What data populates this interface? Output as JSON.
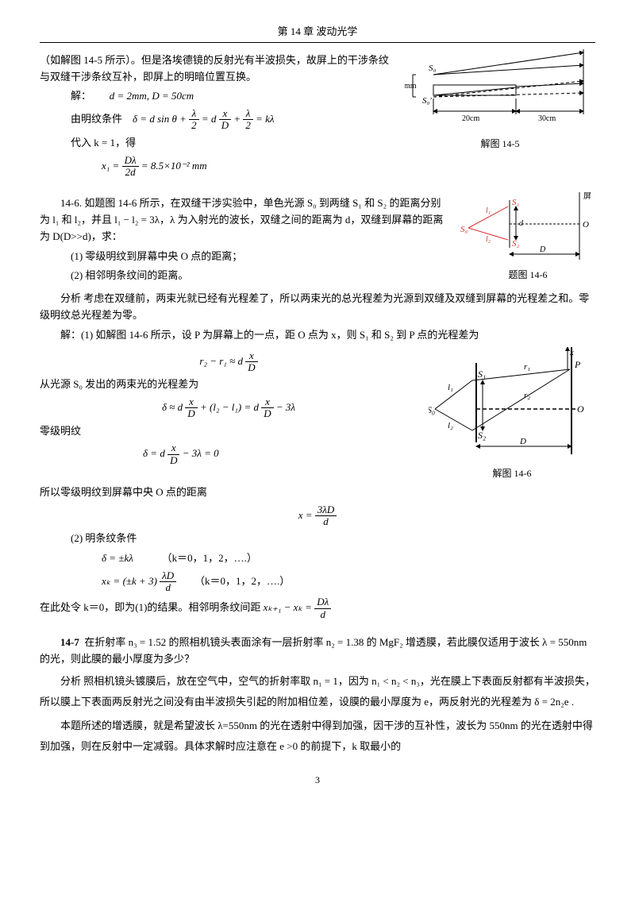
{
  "chapter_header": "第 14 章   波动光学",
  "intro_line": "（如解图 14-5 所示）。但是洛埃德镜的反射光有半波损失，故屏上的干涉条纹与双缝干涉条纹互补，即屏上的明暗位置互换。",
  "sol_label": "解：",
  "eq_dD": "d = 2mm, D = 50cm",
  "bright_cond_label": "由明纹条件",
  "eq_delta1_lhs": "δ = d sin θ +",
  "eq_delta1_frac1_num": "λ",
  "eq_delta1_frac1_den": "2",
  "eq_delta1_mid": " = d",
  "eq_delta1_frac2_num": "x",
  "eq_delta1_frac2_den": "D",
  "eq_delta1_plus": " + ",
  "eq_delta1_frac3_num": "λ",
  "eq_delta1_frac3_den": "2",
  "eq_delta1_rhs": " = kλ",
  "sub_k1": "代入 k = 1，得",
  "eq_x1_lhs": "x₁ = ",
  "eq_x1_frac_num": "Dλ",
  "eq_x1_frac_den": "2d",
  "eq_x1_rhs": " = 8.5×10⁻² mm",
  "fig5_s0": "S₀",
  "fig5_s0p": "S₀′",
  "fig5_1mm": "1mm",
  "fig5_20cm": "20cm",
  "fig5_30cm": "30cm",
  "fig5_caption": "解图 14-5",
  "p146_head": "14-6.   如题图 14-6 所示，在双缝干涉实验中，单色光源 S₀ 到两缝 S₁ 和 S₂ 的距离分别为 l₁ 和 l₂，并且 l₁ − l₂ = 3λ，λ 为入射光的波长，双缝之间的距离为 d，双缝到屏幕的距离为 D(D>>d)，求：",
  "p146_q1": "(1) 零级明纹到屏幕中央 O 点的距离；",
  "p146_q2": "(2) 相邻明条纹间的距离。",
  "p146_fig_s0": "S₀",
  "p146_fig_s1": "S₁",
  "p146_fig_s2": "S₂",
  "p146_fig_l1": "l₁",
  "p146_fig_l2": "l₂",
  "p146_fig_d": "d",
  "p146_fig_D": "D",
  "p146_fig_O": "O",
  "p146_fig_screen": "屏",
  "p146_fig_caption": "题图 14-6",
  "p146_analysis": "分析  考虑在双缝前，两束光就已经有光程差了，所以两束光的总光程差为光源到双缝及双缝到屏幕的光程差之和。零级明纹总光程差为零。",
  "p146_sol1": "解：(1) 如解图 14-6 所示，设 P 为屏幕上的一点，距 O 点为 x，则 S₁ 和 S₂ 到 P 点的光程差为",
  "eq_r2r1_lhs": "r₂ − r₁ ≈ d",
  "eq_r2r1_num": "x",
  "eq_r2r1_den": "D",
  "p146_twospath": "从光源 S₀ 发出的两束光的光程差为",
  "eq_delta2_a": "δ ≈ d",
  "eq_delta2_num1": "x",
  "eq_delta2_den1": "D",
  "eq_delta2_mid": " + (l₂ − l₁) = d",
  "eq_delta2_num2": "x",
  "eq_delta2_den2": "D",
  "eq_delta2_rhs": " − 3λ",
  "zero_fringe": "零级明纹",
  "eq_delta3_a": "δ = d",
  "eq_delta3_num": "x",
  "eq_delta3_den": "D",
  "eq_delta3_rhs": " − 3λ = 0",
  "so_zero_dist": "所以零级明纹到屏幕中央 O 点的距离",
  "eq_x_num": "3λD",
  "eq_x_den": "d",
  "eq_x_lhs": "x = ",
  "sol2_label": "(2)  明条纹条件",
  "eq_delta_kl": "δ = ±kλ",
  "k_vals": "（k＝0，1，2，….）",
  "eq_xk_lhs": "xₖ = (±k + 3)",
  "eq_xk_num": "λD",
  "eq_xk_den": "d",
  "k0_line_a": "在此处令 k＝0，即为(1)的结果。相邻明条纹间距 ",
  "eq_spacing_lhs": "xₖ₊₁ − xₖ = ",
  "eq_spacing_num": "Dλ",
  "eq_spacing_den": "d",
  "fig6_s0": "S₀",
  "fig6_s1": "S₁",
  "fig6_s2": "S₂",
  "fig6_l1": "l₁",
  "fig6_l2": "l₂",
  "fig6_r1": "r₁",
  "fig6_r2": "r₂",
  "fig6_P": "P",
  "fig6_O": "O",
  "fig6_x": "x",
  "fig6_D": "D",
  "fig6_caption": "解图 14-6",
  "p147_head": "14-7   在折射率 n₃ = 1.52  的照相机镜头表面涂有一层折射率 n₂ = 1.38 的 MgF₂ 增透膜，若此膜仅适用于波长 λ = 550nm 的光，则此膜的最小厚度为多少？",
  "p147_analysis": "分析   照相机镜头镀膜后，放在空气中，空气的折射率取 n₁ = 1，因为   n₁ < n₂ < n₃，光在膜上下表面反射都有半波损失，所以膜上下表面两反射光之间没有由半波损失引起的附加相位差，设膜的最小厚度为 e，两反射光的光程差为 δ = 2n₂e .",
  "p147_para2": "本题所述的增透膜，就是希望波长 λ=550nm 的光在透射中得到加强，因干涉的互补性，波长为 550nm 的光在透射中得到加强，则在反射中一定减弱。具体求解时应注意在 e >0 的前提下，k 取最小的",
  "page_number": "3"
}
